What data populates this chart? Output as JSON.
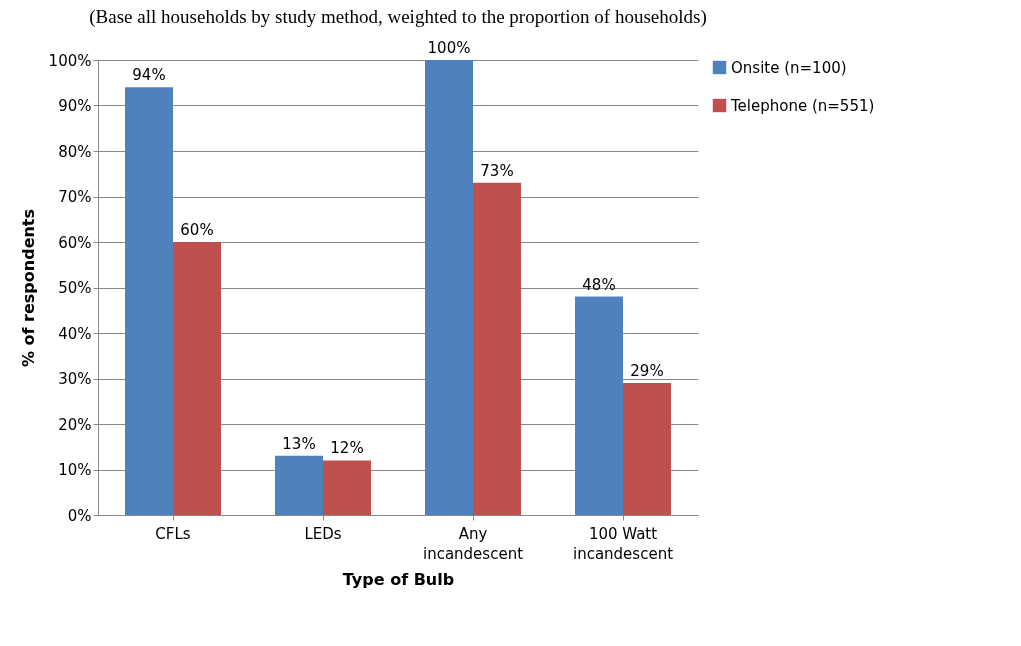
{
  "chart_data": {
    "type": "bar",
    "title": "(Base all households by study method, weighted to the proportion of households)",
    "xlabel": "Type of Bulb",
    "ylabel": "% of respondents",
    "categories": [
      "CFLs",
      "LEDs",
      "Any incandescent",
      "100 Watt incandescent"
    ],
    "series": [
      {
        "name": "Onsite (n=100)",
        "color": "#4f81bd",
        "values": [
          94,
          13,
          100,
          48
        ],
        "value_labels": [
          "94%",
          "13%",
          "100%",
          "48%"
        ]
      },
      {
        "name": "Telephone (n=551)",
        "color": "#c0504d",
        "values": [
          60,
          12,
          73,
          29
        ],
        "value_labels": [
          "60%",
          "12%",
          "73%",
          "29%"
        ]
      }
    ],
    "ylim": [
      0,
      100
    ],
    "yticks": [
      {
        "value": 0,
        "label": "0%"
      },
      {
        "value": 10,
        "label": "10%"
      },
      {
        "value": 20,
        "label": "20%"
      },
      {
        "value": 30,
        "label": "30%"
      },
      {
        "value": 40,
        "label": "40%"
      },
      {
        "value": 50,
        "label": "50%"
      },
      {
        "value": 60,
        "label": "60%"
      },
      {
        "value": 70,
        "label": "70%"
      },
      {
        "value": 80,
        "label": "80%"
      },
      {
        "value": 90,
        "label": "90%"
      },
      {
        "value": 100,
        "label": "100%"
      }
    ],
    "grid": "y",
    "legend": "right"
  }
}
